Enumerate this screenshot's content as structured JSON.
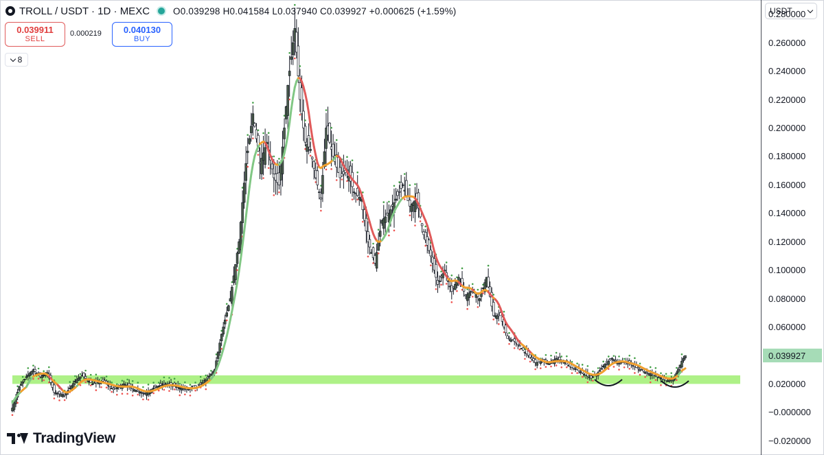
{
  "header": {
    "symbol": "TROLL / USDT · 1D · MEXC",
    "ohlc": "O0.039298 H0.041584 L0.037940 C0.039927 +0.000625 (+1.59%)"
  },
  "trade": {
    "sell_price": "0.039911",
    "sell_label": "SELL",
    "spread": "0.000219",
    "buy_price": "0.040130",
    "buy_label": "BUY"
  },
  "indicators_toggle": {
    "count": "8"
  },
  "currency": {
    "label": "USDT"
  },
  "branding": {
    "name": "TradingView"
  },
  "colors": {
    "bull": "#26a69a",
    "bear": "#ef5350",
    "candle_body": "#4c5f4c",
    "ma_up": "#81c784",
    "ma_flat": "#f0a030",
    "ma_down": "#e05a5a",
    "support_zone": "#a5f07a",
    "last_price_bg": "#a6dcb7"
  },
  "chart_data": {
    "type": "candlestick",
    "symbol": "TROLL / USDT",
    "interval": "1D",
    "exchange": "MEXC",
    "y_axis": {
      "ylim": [
        -0.03,
        0.29
      ],
      "ticks": [
        "0.280000",
        "0.260000",
        "0.240000",
        "0.220000",
        "0.200000",
        "0.180000",
        "0.160000",
        "0.140000",
        "0.120000",
        "0.100000",
        "0.080000",
        "0.060000",
        "0.039927",
        "0.020000",
        "−0.000000",
        "−0.020000"
      ],
      "tick_values": [
        0.28,
        0.26,
        0.24,
        0.22,
        0.2,
        0.18,
        0.16,
        0.14,
        0.12,
        0.1,
        0.08,
        0.06,
        0.039927,
        0.02,
        0.0,
        -0.02
      ],
      "last_price": "0.039927"
    },
    "support_zone": {
      "from": 0.02,
      "to": 0.026
    },
    "close_anchors": [
      [
        0,
        0.003
      ],
      [
        4,
        0.018
      ],
      [
        8,
        0.025
      ],
      [
        12,
        0.03
      ],
      [
        16,
        0.025
      ],
      [
        20,
        0.028
      ],
      [
        24,
        0.014
      ],
      [
        30,
        0.012
      ],
      [
        36,
        0.022
      ],
      [
        40,
        0.026
      ],
      [
        46,
        0.02
      ],
      [
        52,
        0.022
      ],
      [
        58,
        0.016
      ],
      [
        64,
        0.02
      ],
      [
        70,
        0.016
      ],
      [
        76,
        0.013
      ],
      [
        82,
        0.018
      ],
      [
        88,
        0.02
      ],
      [
        94,
        0.018
      ],
      [
        100,
        0.016
      ],
      [
        106,
        0.018
      ],
      [
        112,
        0.024
      ],
      [
        116,
        0.03
      ],
      [
        120,
        0.055
      ],
      [
        125,
        0.08
      ],
      [
        130,
        0.12
      ],
      [
        134,
        0.175
      ],
      [
        138,
        0.21
      ],
      [
        142,
        0.175
      ],
      [
        146,
        0.19
      ],
      [
        150,
        0.165
      ],
      [
        153,
        0.16
      ],
      [
        156,
        0.2
      ],
      [
        158,
        0.23
      ],
      [
        160,
        0.25
      ],
      [
        162,
        0.27
      ],
      [
        165,
        0.22
      ],
      [
        168,
        0.19
      ],
      [
        171,
        0.185
      ],
      [
        174,
        0.165
      ],
      [
        177,
        0.15
      ],
      [
        180,
        0.2
      ],
      [
        184,
        0.18
      ],
      [
        188,
        0.165
      ],
      [
        192,
        0.17
      ],
      [
        196,
        0.155
      ],
      [
        200,
        0.15
      ],
      [
        204,
        0.12
      ],
      [
        208,
        0.105
      ],
      [
        212,
        0.135
      ],
      [
        216,
        0.14
      ],
      [
        220,
        0.15
      ],
      [
        224,
        0.16
      ],
      [
        228,
        0.145
      ],
      [
        232,
        0.15
      ],
      [
        236,
        0.125
      ],
      [
        240,
        0.11
      ],
      [
        244,
        0.09
      ],
      [
        248,
        0.1
      ],
      [
        252,
        0.085
      ],
      [
        256,
        0.095
      ],
      [
        260,
        0.082
      ],
      [
        264,
        0.086
      ],
      [
        268,
        0.08
      ],
      [
        272,
        0.095
      ],
      [
        276,
        0.068
      ],
      [
        280,
        0.068
      ],
      [
        284,
        0.052
      ],
      [
        288,
        0.05
      ],
      [
        292,
        0.045
      ],
      [
        296,
        0.04
      ],
      [
        300,
        0.035
      ],
      [
        304,
        0.036
      ],
      [
        308,
        0.034
      ],
      [
        312,
        0.038
      ],
      [
        316,
        0.036
      ],
      [
        320,
        0.032
      ],
      [
        324,
        0.03
      ],
      [
        328,
        0.027
      ],
      [
        332,
        0.024
      ],
      [
        336,
        0.028
      ],
      [
        340,
        0.034
      ],
      [
        344,
        0.038
      ],
      [
        348,
        0.034
      ],
      [
        352,
        0.036
      ],
      [
        356,
        0.033
      ],
      [
        360,
        0.03
      ],
      [
        364,
        0.028
      ],
      [
        368,
        0.026
      ],
      [
        372,
        0.024
      ],
      [
        376,
        0.022
      ],
      [
        380,
        0.025
      ],
      [
        384,
        0.036
      ],
      [
        386,
        0.039927
      ]
    ]
  }
}
